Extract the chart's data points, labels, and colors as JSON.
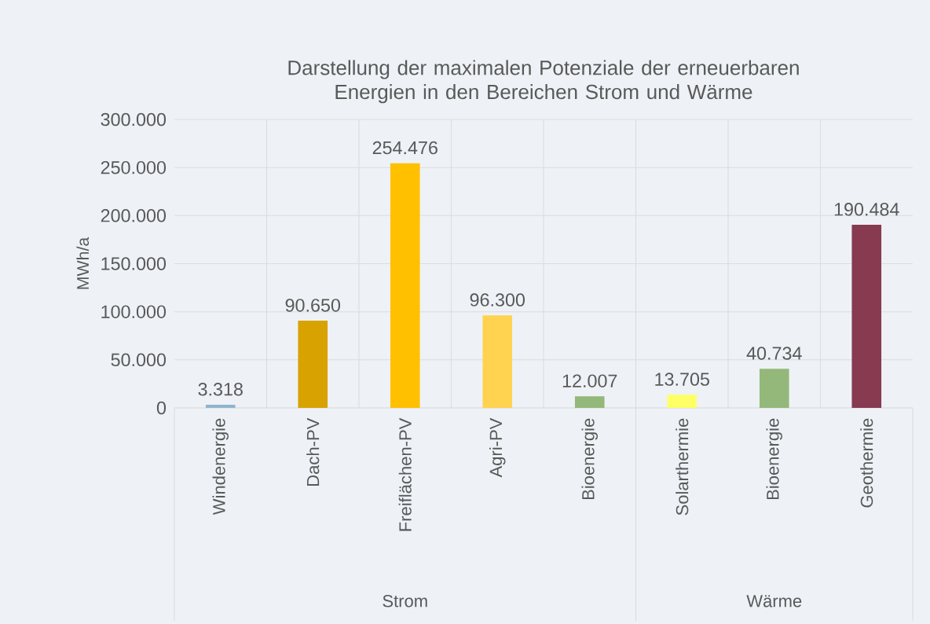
{
  "chart_data": {
    "type": "bar",
    "title": "Darstellung der maximalen Potenziale der erneuerbaren Energien in den Bereichen Strom und Wärme",
    "ylabel": "MWh/a",
    "categories": [
      "Windenergie",
      "Dach-PV",
      "Freiflächen-PV",
      "Agri-PV",
      "Bioenergie",
      "Solarthermie",
      "Bioenergie",
      "Geothermie"
    ],
    "values": [
      3318,
      90650,
      254476,
      96300,
      12007,
      13705,
      40734,
      190484
    ],
    "value_labels": [
      "3.318",
      "90.650",
      "254.476",
      "96.300",
      "12.007",
      "13.705",
      "40.734",
      "190.484"
    ],
    "colors": [
      "#8fb4d0",
      "#d8a200",
      "#ffc000",
      "#ffd34f",
      "#94b87a",
      "#ffff66",
      "#94b87a",
      "#873a50"
    ],
    "ylim": [
      0,
      300000
    ],
    "yticks": [
      {
        "value": 0,
        "label": "0"
      },
      {
        "value": 50000,
        "label": "50.000"
      },
      {
        "value": 100000,
        "label": "100.000"
      },
      {
        "value": 150000,
        "label": "150.000"
      },
      {
        "value": 200000,
        "label": "200.000"
      },
      {
        "value": 250000,
        "label": "250.000"
      },
      {
        "value": 300000,
        "label": "300.000"
      }
    ],
    "grid": true,
    "annotations": [
      "Strom",
      "Wärme"
    ]
  }
}
